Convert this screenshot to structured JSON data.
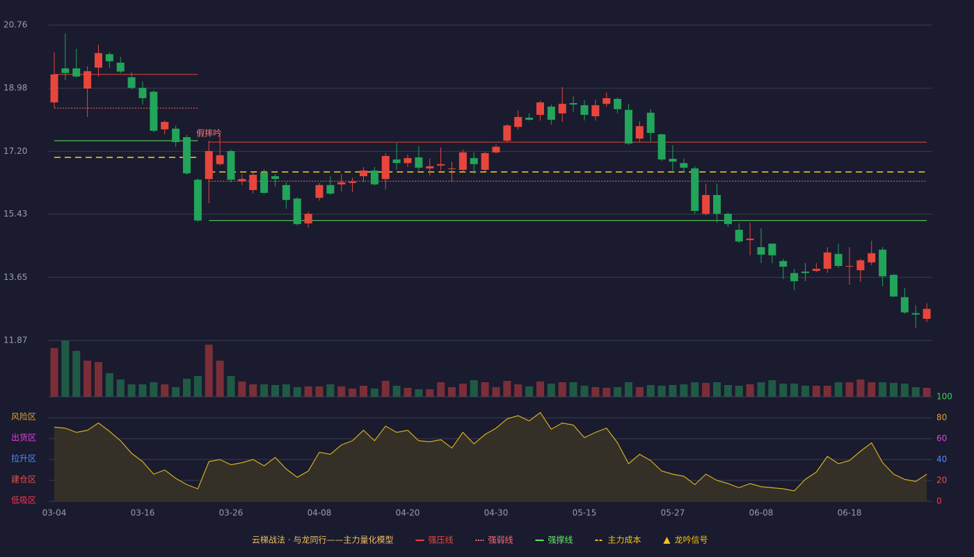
{
  "chart_data": {
    "type": "candlestick",
    "categories": [
      "03-04",
      null,
      null,
      null,
      null,
      null,
      null,
      null,
      "03-16",
      null,
      null,
      null,
      null,
      null,
      null,
      null,
      "03-26",
      null,
      null,
      null,
      null,
      null,
      null,
      null,
      "04-08",
      null,
      null,
      null,
      null,
      null,
      null,
      null,
      "04-20",
      null,
      null,
      null,
      null,
      null,
      null,
      null,
      "04-30",
      null,
      null,
      null,
      null,
      null,
      null,
      null,
      "05-15",
      null,
      null,
      null,
      null,
      null,
      null,
      null,
      "05-27",
      null,
      null,
      null,
      null,
      null,
      null,
      null,
      "06-08",
      null,
      null,
      null,
      null,
      null,
      null,
      null,
      "06-18",
      null,
      null,
      null,
      null,
      null,
      null,
      null
    ],
    "open": [
      18.58,
      19.54,
      19.54,
      18.97,
      19.56,
      19.94,
      19.7,
      19.29,
      18.99,
      18.88,
      17.82,
      17.84,
      17.6,
      16.4,
      16.42,
      16.84,
      17.21,
      16.36,
      16.11,
      16.6,
      16.5,
      16.25,
      15.87,
      15.17,
      15.89,
      16.25,
      16.27,
      16.31,
      16.5,
      16.66,
      16.42,
      16.97,
      16.87,
      17.03,
      16.72,
      16.8,
      16.7,
      16.68,
      17.01,
      16.68,
      17.17,
      17.5,
      17.89,
      18.15,
      18.23,
      18.46,
      18.27,
      18.56,
      18.5,
      18.19,
      18.54,
      18.68,
      18.37,
      17.56,
      18.29,
      17.68,
      16.99,
      16.87,
      16.72,
      15.44,
      15.97,
      15.44,
      14.99,
      14.7,
      14.5,
      14.6,
      14.11,
      13.77,
      13.81,
      13.83,
      13.89,
      14.31,
      13.95,
      13.85,
      14.07,
      14.43,
      13.72,
      13.09,
      12.64,
      12.48
    ],
    "high": [
      19.99,
      20.52,
      20.09,
      19.6,
      20.21,
      19.99,
      19.86,
      19.43,
      19.17,
      18.92,
      18.07,
      17.93,
      17.66,
      16.44,
      17.5,
      17.7,
      17.25,
      16.56,
      16.6,
      16.7,
      16.56,
      16.33,
      15.91,
      15.5,
      16.31,
      16.5,
      16.56,
      16.46,
      16.76,
      16.76,
      17.15,
      17.44,
      17.11,
      17.35,
      17.0,
      17.31,
      16.91,
      17.25,
      17.17,
      17.19,
      17.39,
      17.97,
      18.35,
      18.27,
      18.62,
      18.52,
      19.01,
      18.76,
      18.64,
      18.66,
      18.86,
      18.72,
      18.54,
      18.05,
      18.39,
      17.7,
      17.37,
      16.99,
      16.78,
      16.29,
      16.29,
      15.48,
      15.17,
      15.19,
      15.03,
      14.6,
      14.17,
      13.89,
      14.05,
      14.05,
      14.5,
      14.6,
      14.5,
      14.17,
      14.68,
      14.5,
      13.74,
      13.35,
      12.86,
      12.92
    ],
    "low": [
      18.42,
      19.21,
      19.27,
      18.17,
      19.31,
      19.56,
      19.41,
      18.95,
      18.52,
      17.74,
      17.68,
      17.33,
      16.54,
      15.21,
      15.74,
      16.8,
      16.33,
      16.25,
      16.01,
      15.99,
      16.21,
      15.58,
      15.11,
      15.05,
      15.81,
      15.97,
      16.07,
      16.05,
      16.33,
      16.23,
      16.13,
      16.68,
      16.76,
      16.66,
      16.52,
      16.66,
      16.33,
      16.64,
      16.56,
      16.64,
      17.13,
      17.46,
      17.82,
      18.07,
      18.07,
      17.95,
      18.03,
      18.31,
      18.07,
      18.07,
      18.46,
      18.27,
      17.38,
      17.46,
      17.46,
      16.93,
      16.66,
      16.6,
      15.44,
      15.4,
      15.19,
      15.07,
      14.62,
      14.27,
      14.05,
      14.05,
      13.6,
      13.29,
      13.54,
      13.79,
      13.77,
      13.91,
      13.44,
      13.52,
      13.99,
      13.4,
      13.09,
      12.62,
      12.23,
      12.39
    ],
    "close": [
      19.37,
      19.41,
      19.31,
      19.46,
      19.97,
      19.74,
      19.45,
      18.99,
      18.7,
      17.78,
      18.03,
      17.46,
      16.58,
      15.25,
      17.21,
      17.09,
      16.4,
      16.42,
      16.54,
      16.03,
      16.42,
      15.83,
      15.15,
      15.44,
      16.25,
      16.01,
      16.33,
      16.35,
      16.66,
      16.27,
      17.07,
      16.87,
      17.01,
      16.74,
      16.78,
      16.84,
      16.72,
      17.17,
      16.84,
      17.15,
      17.33,
      17.93,
      18.17,
      18.09,
      18.58,
      18.09,
      18.54,
      18.52,
      18.23,
      18.5,
      18.7,
      18.39,
      17.42,
      17.91,
      17.72,
      16.97,
      16.91,
      16.74,
      15.52,
      15.97,
      15.44,
      15.15,
      14.66,
      14.74,
      14.29,
      14.27,
      13.95,
      13.54,
      13.77,
      13.89,
      14.35,
      13.97,
      13.97,
      14.13,
      14.33,
      13.68,
      13.11,
      12.66,
      12.6,
      12.76
    ],
    "volume": [
      70,
      81,
      66,
      52,
      50,
      34,
      25,
      18,
      18,
      21,
      18,
      14,
      26,
      30,
      75,
      52,
      30,
      22,
      18,
      18,
      17,
      18,
      14,
      15,
      15,
      18,
      15,
      12,
      16,
      12,
      23,
      16,
      13,
      11,
      11,
      21,
      14,
      19,
      24,
      21,
      14,
      23,
      18,
      15,
      22,
      19,
      21,
      21,
      16,
      14,
      13,
      14,
      21,
      14,
      17,
      16,
      17,
      18,
      21,
      20,
      21,
      17,
      16,
      18,
      21,
      24,
      19,
      19,
      16,
      16,
      16,
      21,
      21,
      25,
      21,
      21,
      20,
      19,
      14,
      13
    ],
    "up_color": "#e8463c",
    "down_color": "#22a45a",
    "ylim": [
      11.87,
      20.76
    ],
    "yticks": [
      11.87,
      13.65,
      15.43,
      {
        "value": 17.2,
        "label": "17.20"
      },
      18.98,
      20.76
    ],
    "grid": true,
    "series": [
      {
        "name": "强压线",
        "color": "#e8463c",
        "style": "solid",
        "values": [
          19.37,
          19.37,
          19.37,
          19.37,
          19.37,
          19.37,
          19.37,
          19.37,
          19.37,
          19.37,
          19.37,
          19.37,
          19.37,
          19.37,
          17.46,
          17.46,
          17.46,
          17.46,
          17.46,
          17.46,
          17.46,
          17.46,
          17.46,
          17.46,
          17.46,
          17.46,
          17.46,
          17.46,
          17.46,
          17.46,
          17.46,
          17.46,
          17.46,
          17.46,
          17.46,
          17.46,
          17.46,
          17.46,
          17.46,
          17.46,
          17.46,
          17.46,
          17.46,
          17.46,
          17.46,
          17.46,
          17.46,
          17.46,
          17.46,
          17.46,
          17.46,
          17.46,
          17.46,
          17.46,
          17.46,
          17.46,
          17.46,
          17.46,
          17.46,
          17.46,
          17.46,
          17.46,
          17.46,
          17.46,
          17.46,
          17.46,
          17.46,
          17.46,
          17.46,
          17.46,
          17.46,
          17.46,
          17.46,
          17.46,
          17.46,
          17.46,
          17.46,
          17.46,
          17.46,
          17.46
        ]
      },
      {
        "name": "强弱线",
        "color": "#f07070",
        "style": "dotted",
        "values": [
          18.42,
          18.42,
          18.42,
          18.42,
          18.42,
          18.42,
          18.42,
          18.42,
          18.42,
          18.42,
          18.42,
          18.42,
          18.42,
          18.42,
          16.36,
          16.36,
          16.36,
          16.36,
          16.36,
          16.36,
          16.36,
          16.36,
          16.36,
          16.36,
          16.36,
          16.36,
          16.36,
          16.36,
          16.36,
          16.36,
          16.36,
          16.36,
          16.36,
          16.36,
          16.36,
          16.36,
          16.36,
          16.36,
          16.36,
          16.36,
          16.36,
          16.36,
          16.36,
          16.36,
          16.36,
          16.36,
          16.36,
          16.36,
          16.36,
          16.36,
          16.36,
          16.36,
          16.36,
          16.36,
          16.36,
          16.36,
          16.36,
          16.36,
          16.36,
          16.36,
          16.36,
          16.36,
          16.36,
          16.36,
          16.36,
          16.36,
          16.36,
          16.36,
          16.36,
          16.36,
          16.36,
          16.36,
          16.36,
          16.36,
          16.36,
          16.36,
          16.36,
          16.36,
          16.36,
          16.36
        ]
      },
      {
        "name": "强撑线",
        "color": "#5ee85e",
        "style": "solid",
        "values": [
          17.5,
          17.5,
          17.5,
          17.5,
          17.5,
          17.5,
          17.5,
          17.5,
          17.5,
          17.5,
          17.5,
          17.5,
          17.5,
          17.5,
          15.25,
          15.25,
          15.25,
          15.25,
          15.25,
          15.25,
          15.25,
          15.25,
          15.25,
          15.25,
          15.25,
          15.25,
          15.25,
          15.25,
          15.25,
          15.25,
          15.25,
          15.25,
          15.25,
          15.25,
          15.25,
          15.25,
          15.25,
          15.25,
          15.25,
          15.25,
          15.25,
          15.25,
          15.25,
          15.25,
          15.25,
          15.25,
          15.25,
          15.25,
          15.25,
          15.25,
          15.25,
          15.25,
          15.25,
          15.25,
          15.25,
          15.25,
          15.25,
          15.25,
          15.25,
          15.25,
          15.25,
          15.25,
          15.25,
          15.25,
          15.25,
          15.25,
          15.25,
          15.25,
          15.25,
          15.25,
          15.25,
          15.25,
          15.25,
          15.25,
          15.25,
          15.25,
          15.25,
          15.25,
          15.25,
          15.25
        ]
      },
      {
        "name": "主力成本",
        "color": "#f0c419",
        "style": "dashed",
        "values": [
          17.03,
          17.03,
          17.03,
          17.03,
          17.03,
          17.03,
          17.03,
          17.03,
          17.03,
          17.03,
          17.03,
          17.03,
          17.03,
          17.03,
          16.62,
          16.62,
          16.62,
          16.62,
          16.62,
          16.62,
          16.62,
          16.62,
          16.62,
          16.62,
          16.62,
          16.62,
          16.62,
          16.62,
          16.62,
          16.62,
          16.62,
          16.62,
          16.62,
          16.62,
          16.62,
          16.62,
          16.62,
          16.62,
          16.62,
          16.62,
          16.62,
          16.62,
          16.62,
          16.62,
          16.62,
          16.62,
          16.62,
          16.62,
          16.62,
          16.62,
          16.62,
          16.62,
          16.62,
          16.62,
          16.62,
          16.62,
          16.62,
          16.62,
          16.62,
          16.62,
          16.62,
          16.62,
          16.62,
          16.62,
          16.62,
          16.62,
          16.62,
          16.62,
          16.62,
          16.62,
          16.62,
          16.62,
          16.62,
          16.62,
          16.62,
          16.62,
          16.62,
          16.62,
          16.62,
          16.62
        ]
      }
    ],
    "signal": {
      "name": "龙吟信号",
      "color": "#f0c419",
      "label_color": "#ff7a7a",
      "labels": [
        null,
        null,
        null,
        null,
        null,
        null,
        null,
        null,
        null,
        null,
        null,
        null,
        null,
        null,
        "假摔吟",
        null,
        null,
        null,
        null,
        null,
        null,
        null,
        null,
        null,
        null,
        null,
        null,
        null,
        null,
        null,
        null,
        null,
        null,
        null,
        null,
        null,
        null,
        null,
        null,
        null,
        null,
        null,
        null,
        null,
        null,
        null,
        null,
        null,
        null,
        null,
        null,
        null,
        null,
        null,
        null,
        null,
        null,
        null,
        null,
        null,
        null,
        null,
        null,
        null,
        null,
        null,
        null,
        null,
        null,
        null,
        null,
        null,
        null,
        null,
        null,
        null,
        null,
        null,
        null,
        null
      ]
    },
    "indicator": {
      "type": "area",
      "color": "#d4b020",
      "fill": "#3a3326",
      "values": [
        71,
        70,
        66,
        68,
        75,
        67,
        58,
        46,
        38,
        26,
        30,
        22,
        16,
        12,
        38,
        40,
        35,
        37,
        40,
        34,
        42,
        31,
        23,
        29,
        47,
        45,
        54,
        58,
        68,
        58,
        72,
        66,
        68,
        58,
        57,
        59,
        51,
        66,
        55,
        64,
        70,
        79,
        82,
        77,
        85,
        69,
        75,
        73,
        61,
        66,
        70,
        56,
        36,
        45,
        39,
        29,
        26,
        24,
        16,
        26,
        20,
        17,
        13,
        17,
        14,
        13,
        12,
        10,
        21,
        28,
        43,
        36,
        39,
        48,
        56,
        37,
        26,
        21,
        19,
        26
      ],
      "ylim": [
        0,
        100
      ],
      "yticks": [
        0,
        20,
        40,
        60,
        80,
        100
      ],
      "ytick_colors": [
        "#ff3050",
        "#e85050",
        "#4a90ff",
        "#e040e0",
        "#e0a030",
        "#3fcf5f"
      ],
      "zones": [
        {
          "label": "风险区",
          "value": 80,
          "color": "#e0a030"
        },
        {
          "label": "出货区",
          "value": 60,
          "color": "#e040e0"
        },
        {
          "label": "拉升区",
          "value": 40,
          "color": "#4a90ff"
        },
        {
          "label": "建仓区",
          "value": 20,
          "color": "#e85050"
        },
        {
          "label": "低吸区",
          "value": 0,
          "color": "#ff3050"
        }
      ]
    },
    "legend_title": "云梯战法 · 与龙同行——主力量化模型",
    "legend_title_color": "#f0c060"
  }
}
